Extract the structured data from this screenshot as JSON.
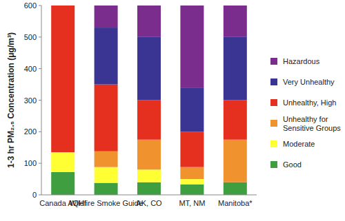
{
  "chart_data": {
    "type": "bar",
    "stacked": true,
    "grid": false,
    "legend": "right",
    "y_label": "1-3 hr PM₂.₅ Concentration (μg/m³)",
    "categories": [
      "Canada AQHI",
      "Wildfire Smoke Guide",
      "AK, CO",
      "MT, NM",
      "Manitoba*"
    ],
    "series": [
      {
        "name": "Good",
        "color": "#3f9e3f",
        "values": [
          72,
          38,
          40,
          33,
          40
        ]
      },
      {
        "name": "Moderate",
        "color": "#ffff33",
        "values": [
          63,
          50,
          40,
          17,
          0
        ]
      },
      {
        "name": "Unhealthy for Sensitive Groups",
        "color": "#f0922e",
        "values": [
          0,
          50,
          95,
          38,
          135
        ]
      },
      {
        "name": "Unhealthy, High",
        "color": "#e5301f",
        "values": [
          465,
          212,
          125,
          112,
          125
        ]
      },
      {
        "name": "Very Unhealthy",
        "color": "#3a3492",
        "values": [
          0,
          180,
          200,
          140,
          200
        ]
      },
      {
        "name": "Hazardous",
        "color": "#7a2d8c",
        "values": [
          0,
          70,
          100,
          260,
          100
        ]
      }
    ],
    "ylim": [
      0,
      600
    ],
    "yticks": [
      0,
      100,
      200,
      300,
      400,
      500,
      600
    ]
  }
}
